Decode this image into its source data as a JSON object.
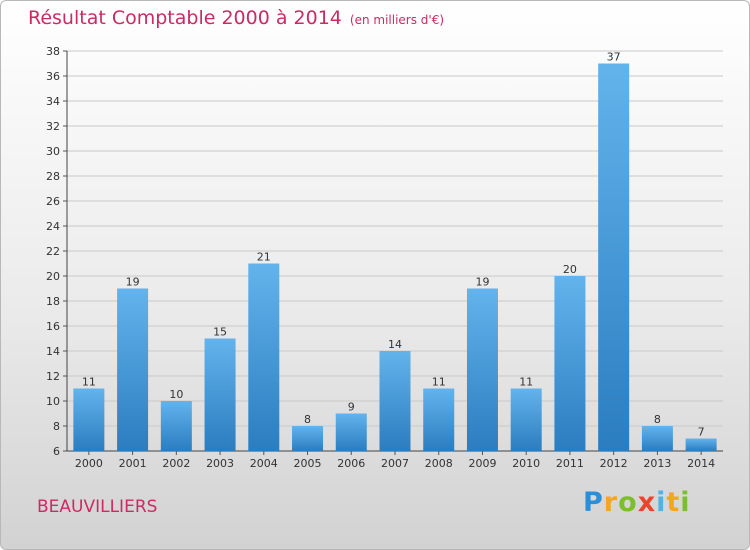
{
  "header": {
    "title": "Résultat Comptable 2000 à 2014",
    "subtitle": "(en milliers d'€)"
  },
  "footer": {
    "town": "BEAUVILLIERS",
    "logo_letters": [
      "P",
      "r",
      "o",
      "x",
      "i",
      "t",
      "i"
    ]
  },
  "colors": {
    "title": "#cc2a63",
    "bar_top": "#63b3ec",
    "bar_bottom": "#2a7dbf",
    "grid": "#c9c9c9"
  },
  "chart_data": {
    "type": "bar",
    "title": "Résultat Comptable 2000 à 2014",
    "subtitle": "(en milliers d'€)",
    "xlabel": "",
    "ylabel": "",
    "categories": [
      "2000",
      "2001",
      "2002",
      "2003",
      "2004",
      "2005",
      "2006",
      "2007",
      "2008",
      "2009",
      "2010",
      "2011",
      "2012",
      "2013",
      "2014"
    ],
    "values": [
      11,
      19,
      10,
      15,
      21,
      8,
      9,
      14,
      11,
      19,
      11,
      20,
      37,
      8,
      7
    ],
    "ylim": [
      6,
      38
    ],
    "yticks": [
      6,
      8,
      10,
      12,
      14,
      16,
      18,
      20,
      22,
      24,
      26,
      28,
      30,
      32,
      34,
      36,
      38
    ],
    "grid": true
  }
}
